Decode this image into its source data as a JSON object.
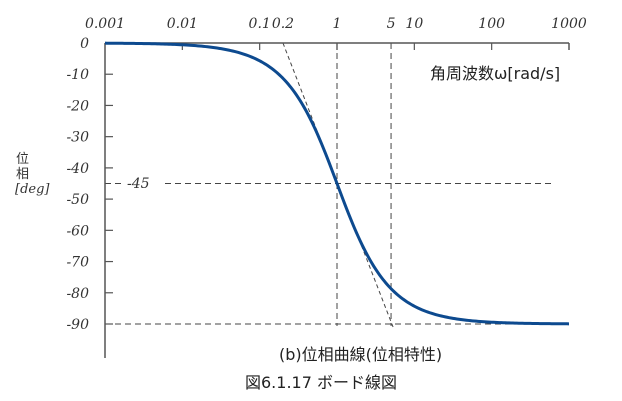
{
  "chart_data": {
    "type": "line",
    "title": "",
    "subtitle": "(b)位相曲線(位相特性)",
    "figure_caption": "図6.1.17  ボード線図",
    "xlabel": "角周波数ω[rad/s]",
    "ylabel": "位相[deg]",
    "xscale": "log",
    "xlim": [
      0.001,
      1000
    ],
    "ylim": [
      -90,
      0
    ],
    "x_ticks": [
      0.001,
      0.01,
      0.1,
      0.2,
      1,
      5,
      10,
      100,
      1000
    ],
    "x_tick_labels": [
      "0.001",
      "0.01",
      "0.1",
      "0.2",
      "1",
      "5",
      "10",
      "100",
      "1000"
    ],
    "y_ticks": [
      0,
      -10,
      -20,
      -30,
      -40,
      -50,
      -60,
      -70,
      -80,
      -90
    ],
    "y_tick_labels": [
      "0",
      "-10",
      "-20",
      "-30",
      "-40",
      "-50",
      "-60",
      "-70",
      "-80",
      "-90"
    ],
    "grid": false,
    "series": [
      {
        "name": "phase",
        "color": "#0d4a8f",
        "x": [
          0.001,
          0.01,
          0.05,
          0.1,
          0.2,
          0.3,
          0.5,
          0.7,
          1,
          1.5,
          2,
          3,
          5,
          7,
          10,
          20,
          50,
          100,
          1000
        ],
        "y": [
          -0.06,
          -0.57,
          -2.9,
          -5.7,
          -11.3,
          -16.7,
          -26.6,
          -35.0,
          -45.0,
          -56.3,
          -63.4,
          -71.6,
          -78.7,
          -81.9,
          -84.3,
          -87.1,
          -88.9,
          -89.4,
          -89.9
        ]
      }
    ],
    "annotations": [
      {
        "type": "asymptote",
        "style": "dashed",
        "from": [
          0.2,
          0
        ],
        "to": [
          5,
          -90
        ]
      },
      {
        "type": "hline",
        "style": "dashed",
        "y": -45,
        "label": "-45"
      },
      {
        "type": "hline",
        "style": "dashed",
        "y": -90
      },
      {
        "type": "vline",
        "style": "dashed",
        "x": 1
      },
      {
        "type": "vline",
        "style": "dashed",
        "x": 5
      }
    ]
  },
  "labels": {
    "minus45": "-45",
    "ylabel_line1": "位",
    "ylabel_line2": "相",
    "ylabel_line3": "[deg]"
  }
}
